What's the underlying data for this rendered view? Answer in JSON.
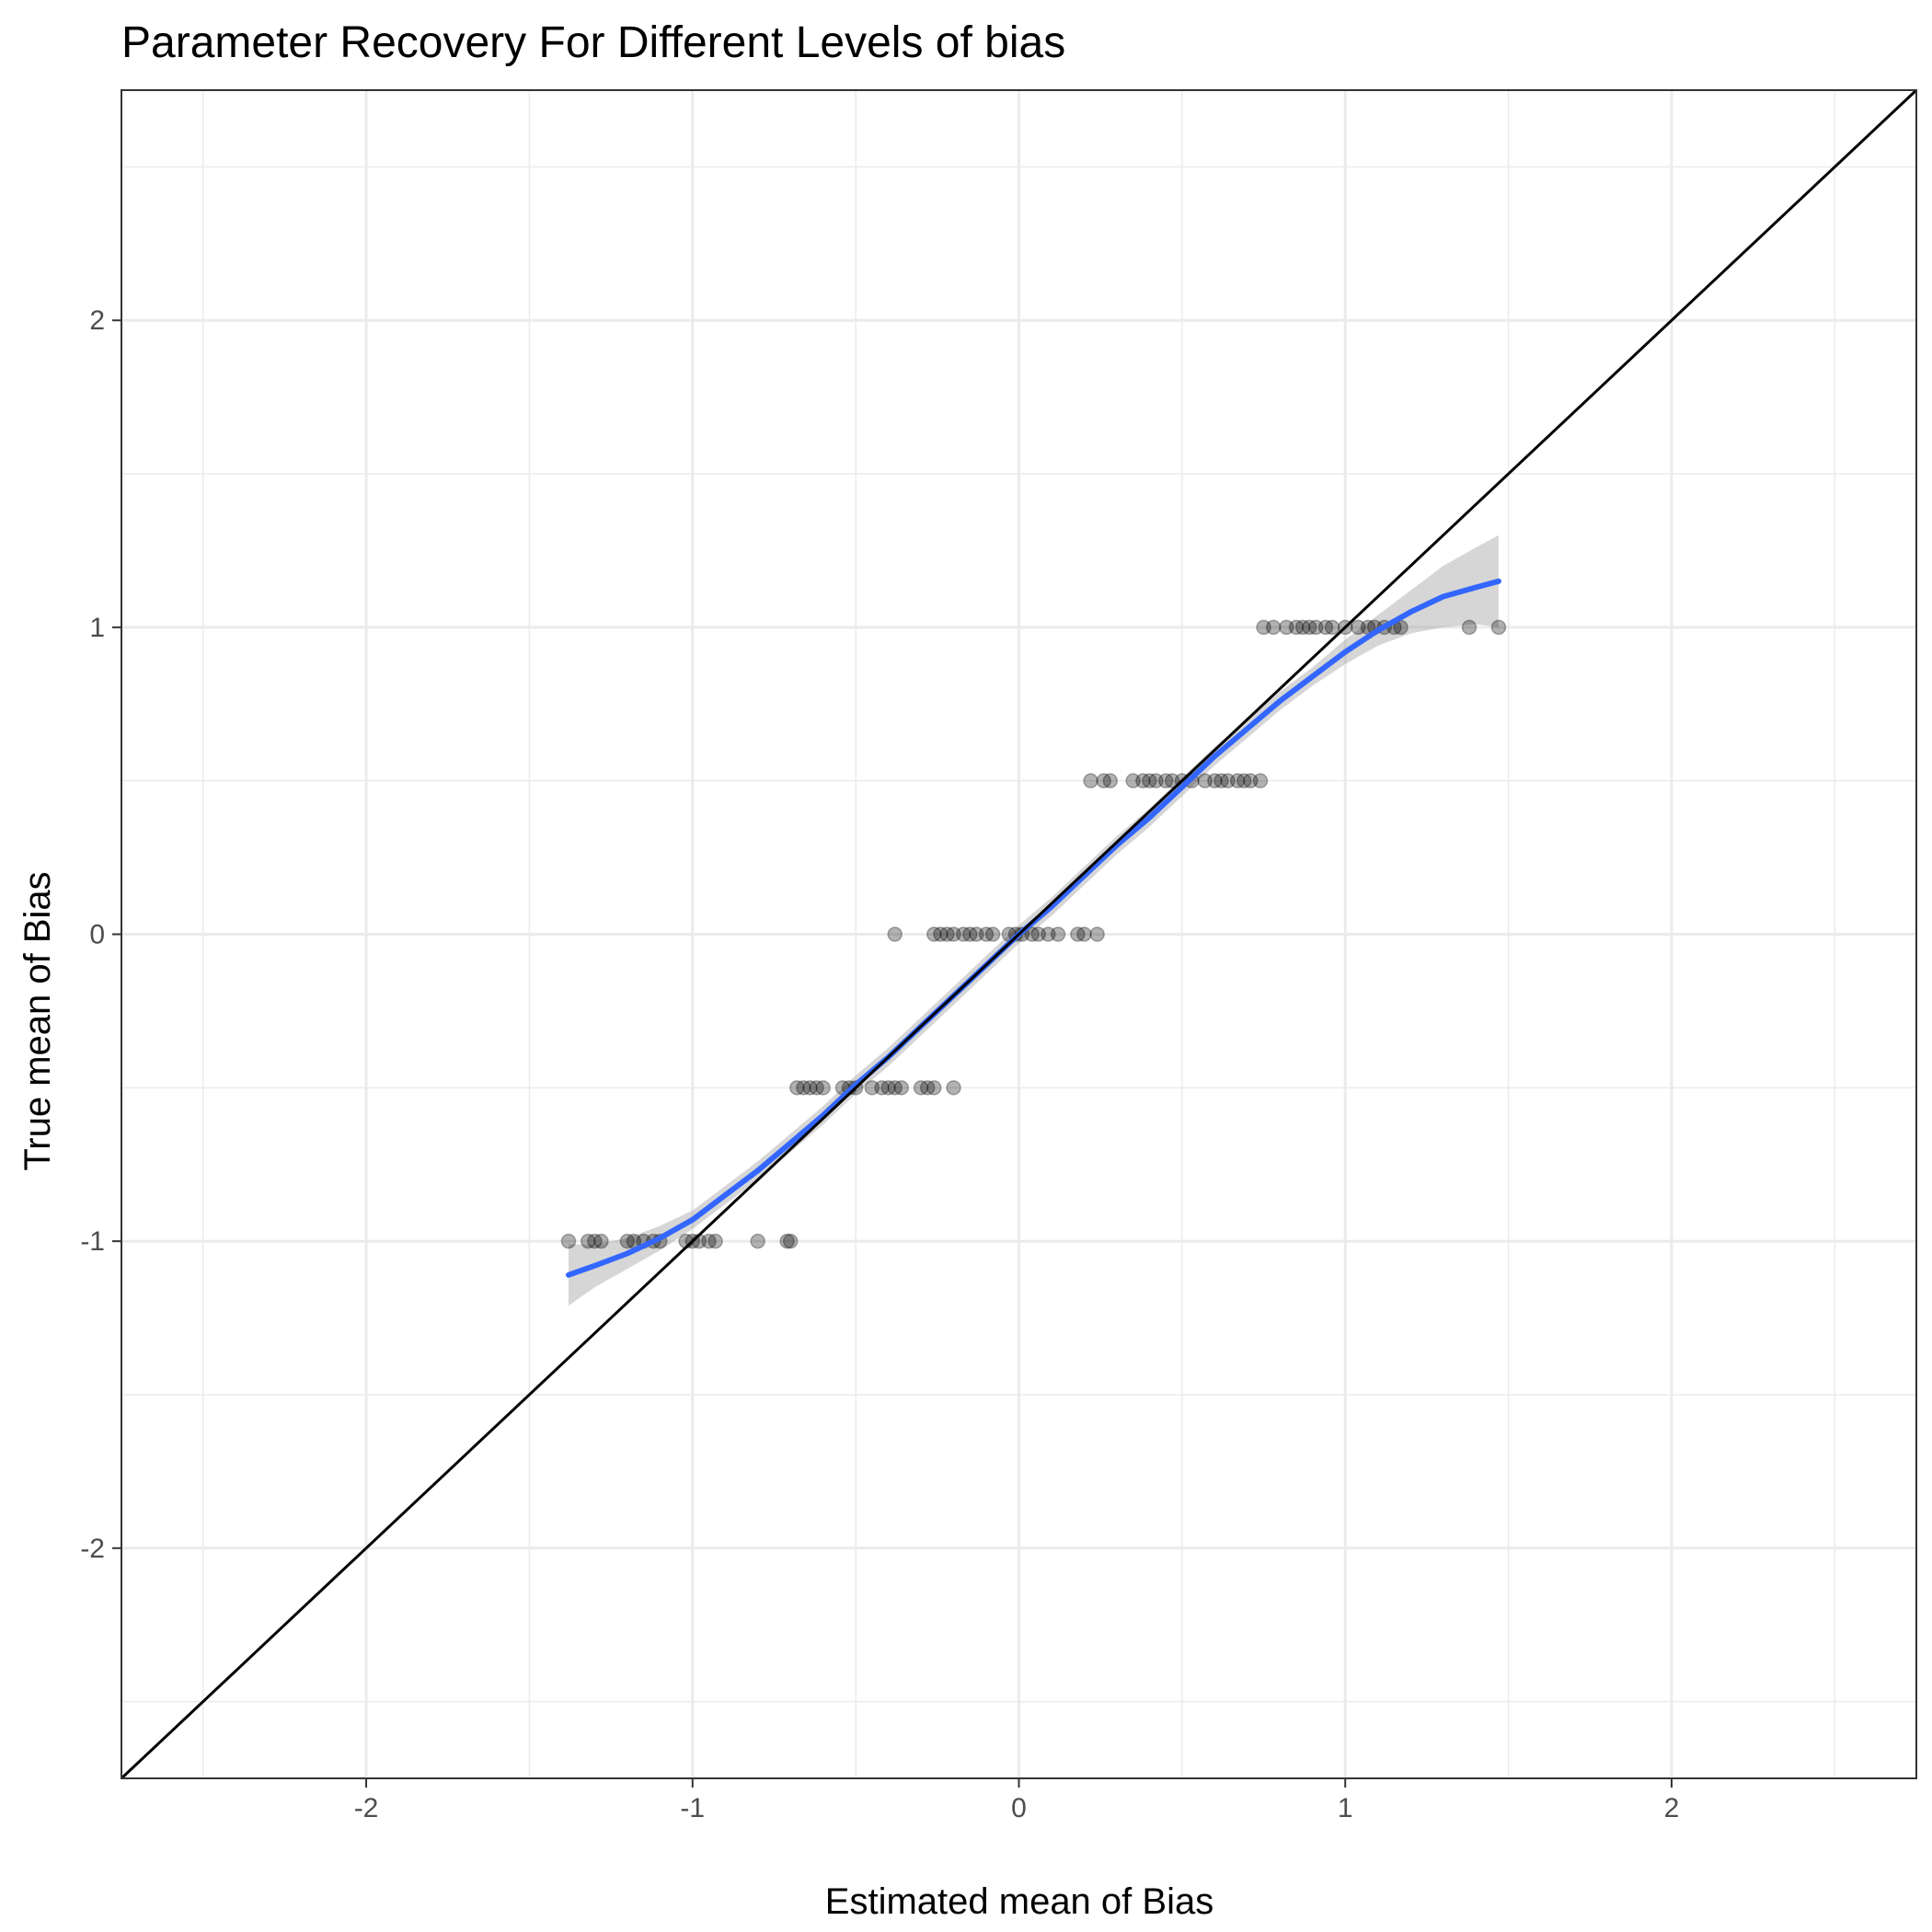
{
  "chart_data": {
    "type": "scatter",
    "title": "Parameter Recovery For Different Levels of bias",
    "xlabel": "Estimated mean of Bias",
    "ylabel": "True mean of Bias",
    "xlim": [
      -2.75,
      2.75
    ],
    "ylim": [
      -2.75,
      2.75
    ],
    "x_ticks": [
      -2,
      -1,
      0,
      1,
      2
    ],
    "y_ticks": [
      -2,
      -1,
      0,
      1,
      2
    ],
    "x_tick_labels": [
      "-2",
      "-1",
      "0",
      "1",
      "2"
    ],
    "y_tick_labels": [
      "-2",
      "-1",
      "0",
      "1",
      "2"
    ],
    "grid": true,
    "points": [
      {
        "x": -1.38,
        "y": -1
      },
      {
        "x": -1.32,
        "y": -1
      },
      {
        "x": -1.3,
        "y": -1
      },
      {
        "x": -1.28,
        "y": -1
      },
      {
        "x": -1.2,
        "y": -1
      },
      {
        "x": -1.18,
        "y": -1
      },
      {
        "x": -1.15,
        "y": -1
      },
      {
        "x": -1.12,
        "y": -1
      },
      {
        "x": -1.1,
        "y": -1
      },
      {
        "x": -1.02,
        "y": -1
      },
      {
        "x": -1.0,
        "y": -1
      },
      {
        "x": -0.98,
        "y": -1
      },
      {
        "x": -0.95,
        "y": -1
      },
      {
        "x": -0.93,
        "y": -1
      },
      {
        "x": -0.8,
        "y": -1
      },
      {
        "x": -0.71,
        "y": -1
      },
      {
        "x": -0.7,
        "y": -1
      },
      {
        "x": -0.68,
        "y": -0.5
      },
      {
        "x": -0.66,
        "y": -0.5
      },
      {
        "x": -0.64,
        "y": -0.5
      },
      {
        "x": -0.62,
        "y": -0.5
      },
      {
        "x": -0.6,
        "y": -0.5
      },
      {
        "x": -0.54,
        "y": -0.5
      },
      {
        "x": -0.52,
        "y": -0.5
      },
      {
        "x": -0.5,
        "y": -0.5
      },
      {
        "x": -0.45,
        "y": -0.5
      },
      {
        "x": -0.42,
        "y": -0.5
      },
      {
        "x": -0.4,
        "y": -0.5
      },
      {
        "x": -0.38,
        "y": -0.5
      },
      {
        "x": -0.36,
        "y": -0.5
      },
      {
        "x": -0.3,
        "y": -0.5
      },
      {
        "x": -0.28,
        "y": -0.5
      },
      {
        "x": -0.26,
        "y": -0.5
      },
      {
        "x": -0.2,
        "y": -0.5
      },
      {
        "x": -0.38,
        "y": 0
      },
      {
        "x": -0.26,
        "y": 0
      },
      {
        "x": -0.24,
        "y": 0
      },
      {
        "x": -0.22,
        "y": 0
      },
      {
        "x": -0.2,
        "y": 0
      },
      {
        "x": -0.17,
        "y": 0
      },
      {
        "x": -0.15,
        "y": 0
      },
      {
        "x": -0.13,
        "y": 0
      },
      {
        "x": -0.1,
        "y": 0
      },
      {
        "x": -0.08,
        "y": 0
      },
      {
        "x": -0.03,
        "y": 0
      },
      {
        "x": -0.01,
        "y": 0
      },
      {
        "x": 0.01,
        "y": 0
      },
      {
        "x": 0.04,
        "y": 0
      },
      {
        "x": 0.06,
        "y": 0
      },
      {
        "x": 0.09,
        "y": 0
      },
      {
        "x": 0.12,
        "y": 0
      },
      {
        "x": 0.18,
        "y": 0
      },
      {
        "x": 0.2,
        "y": 0
      },
      {
        "x": 0.24,
        "y": 0
      },
      {
        "x": 0.22,
        "y": 0.5
      },
      {
        "x": 0.26,
        "y": 0.5
      },
      {
        "x": 0.28,
        "y": 0.5
      },
      {
        "x": 0.35,
        "y": 0.5
      },
      {
        "x": 0.38,
        "y": 0.5
      },
      {
        "x": 0.4,
        "y": 0.5
      },
      {
        "x": 0.42,
        "y": 0.5
      },
      {
        "x": 0.45,
        "y": 0.5
      },
      {
        "x": 0.47,
        "y": 0.5
      },
      {
        "x": 0.5,
        "y": 0.5
      },
      {
        "x": 0.53,
        "y": 0.5
      },
      {
        "x": 0.57,
        "y": 0.5
      },
      {
        "x": 0.6,
        "y": 0.5
      },
      {
        "x": 0.62,
        "y": 0.5
      },
      {
        "x": 0.64,
        "y": 0.5
      },
      {
        "x": 0.67,
        "y": 0.5
      },
      {
        "x": 0.69,
        "y": 0.5
      },
      {
        "x": 0.71,
        "y": 0.5
      },
      {
        "x": 0.74,
        "y": 0.5
      },
      {
        "x": 0.75,
        "y": 1
      },
      {
        "x": 0.78,
        "y": 1
      },
      {
        "x": 0.82,
        "y": 1
      },
      {
        "x": 0.85,
        "y": 1
      },
      {
        "x": 0.87,
        "y": 1
      },
      {
        "x": 0.89,
        "y": 1
      },
      {
        "x": 0.91,
        "y": 1
      },
      {
        "x": 0.94,
        "y": 1
      },
      {
        "x": 0.96,
        "y": 1
      },
      {
        "x": 1.0,
        "y": 1
      },
      {
        "x": 1.04,
        "y": 1
      },
      {
        "x": 1.07,
        "y": 1
      },
      {
        "x": 1.09,
        "y": 1
      },
      {
        "x": 1.12,
        "y": 1
      },
      {
        "x": 1.15,
        "y": 1
      },
      {
        "x": 1.17,
        "y": 1
      },
      {
        "x": 1.38,
        "y": 1
      },
      {
        "x": 1.47,
        "y": 1
      }
    ],
    "smooth": {
      "color": "#3366ff",
      "x": [
        -1.38,
        -1.3,
        -1.2,
        -1.1,
        -1.0,
        -0.9,
        -0.8,
        -0.7,
        -0.6,
        -0.5,
        -0.4,
        -0.3,
        -0.2,
        -0.1,
        0.0,
        0.1,
        0.2,
        0.3,
        0.4,
        0.5,
        0.6,
        0.7,
        0.8,
        0.9,
        1.0,
        1.1,
        1.2,
        1.3,
        1.4,
        1.47
      ],
      "y": [
        -1.11,
        -1.08,
        -1.04,
        -0.99,
        -0.93,
        -0.85,
        -0.77,
        -0.68,
        -0.59,
        -0.49,
        -0.4,
        -0.3,
        -0.2,
        -0.1,
        0.0,
        0.09,
        0.19,
        0.29,
        0.38,
        0.48,
        0.58,
        0.67,
        0.76,
        0.84,
        0.92,
        0.99,
        1.05,
        1.1,
        1.13,
        1.15
      ],
      "lower": [
        -1.21,
        -1.15,
        -1.09,
        -1.03,
        -0.96,
        -0.88,
        -0.8,
        -0.71,
        -0.62,
        -0.52,
        -0.43,
        -0.33,
        -0.23,
        -0.13,
        -0.03,
        0.06,
        0.16,
        0.26,
        0.35,
        0.45,
        0.55,
        0.64,
        0.73,
        0.81,
        0.88,
        0.94,
        0.98,
        1.0,
        1.01,
        1.0
      ],
      "upper": [
        -1.01,
        -1.01,
        -0.99,
        -0.95,
        -0.9,
        -0.82,
        -0.74,
        -0.65,
        -0.56,
        -0.46,
        -0.37,
        -0.27,
        -0.17,
        -0.07,
        0.03,
        0.12,
        0.22,
        0.32,
        0.41,
        0.51,
        0.61,
        0.7,
        0.79,
        0.87,
        0.96,
        1.04,
        1.12,
        1.2,
        1.26,
        1.3
      ]
    },
    "reference_line": {
      "x": [
        -2.75,
        2.75
      ],
      "y": [
        -2.75,
        2.75
      ],
      "color": "#000000"
    },
    "point_color": "#000000"
  }
}
